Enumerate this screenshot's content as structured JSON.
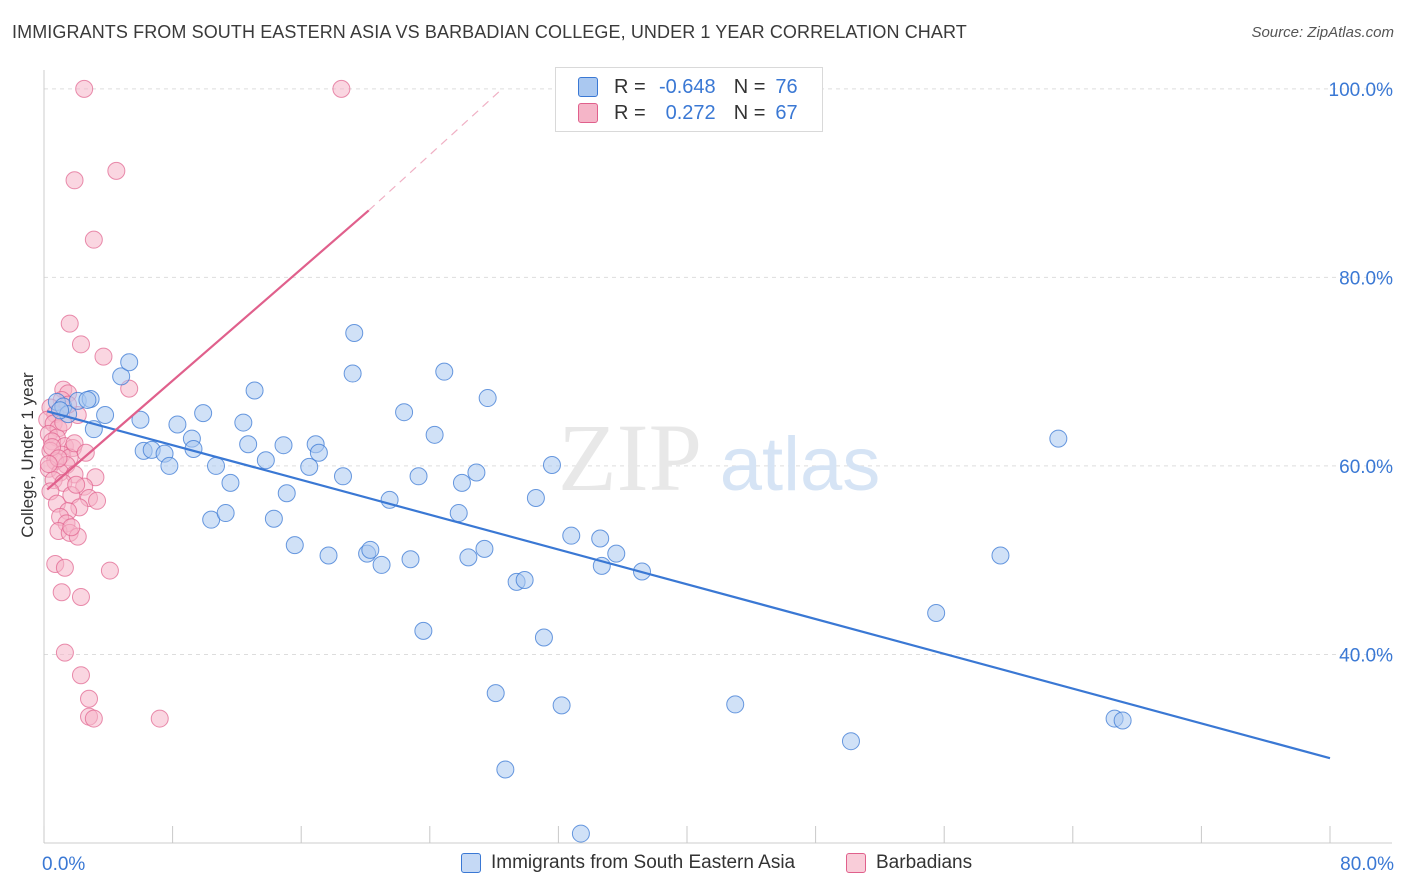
{
  "title": "IMMIGRANTS FROM SOUTH EASTERN ASIA VS BARBADIAN COLLEGE, UNDER 1 YEAR CORRELATION CHART",
  "source": "Source: ZipAtlas.com",
  "watermark": {
    "zip": "ZIP",
    "atlas": "atlas"
  },
  "colors": {
    "blue": "#3a78d4",
    "blue_fill": "#aac8f0",
    "pink": "#e0608c",
    "pink_fill": "#f5b5c8",
    "grid": "#dddddd"
  },
  "legend": {
    "rows": [
      {
        "r_label": "R =",
        "r_value": "-0.648",
        "n_label": "N =",
        "n_value": "76"
      },
      {
        "r_label": "R =",
        "r_value": "0.272",
        "n_label": "N =",
        "n_value": "67"
      }
    ]
  },
  "chart_data": {
    "type": "scatter",
    "title": "IMMIGRANTS FROM SOUTH EASTERN ASIA VS BARBADIAN COLLEGE, UNDER 1 YEAR CORRELATION CHART",
    "xlabel": "",
    "ylabel": "College, Under 1 year",
    "xlim": [
      0,
      80
    ],
    "ylim": [
      20,
      102
    ],
    "x_tick_labels": [
      "0.0%",
      "80.0%"
    ],
    "y_ticks": [
      40,
      60,
      80,
      100
    ],
    "y_tick_labels": [
      "40.0%",
      "60.0%",
      "80.0%",
      "100.0%"
    ],
    "grid": true,
    "legend_position": "top-center",
    "series": [
      {
        "name": "Immigrants from South Eastern Asia",
        "color": "#3a78d4",
        "trend": {
          "x": [
            0.2,
            80
          ],
          "y": [
            65.8,
            29.0
          ]
        },
        "points": [
          [
            0.8,
            66.8
          ],
          [
            1.2,
            66.3
          ],
          [
            1.5,
            65.5
          ],
          [
            2.1,
            66.9
          ],
          [
            2.9,
            67.1
          ],
          [
            3.1,
            63.9
          ],
          [
            3.8,
            65.4
          ],
          [
            4.8,
            69.5
          ],
          [
            5.3,
            71.0
          ],
          [
            6.0,
            64.9
          ],
          [
            6.2,
            61.6
          ],
          [
            6.7,
            61.7
          ],
          [
            7.5,
            61.3
          ],
          [
            7.8,
            60.0
          ],
          [
            8.3,
            64.4
          ],
          [
            9.2,
            62.9
          ],
          [
            9.3,
            61.8
          ],
          [
            9.9,
            65.6
          ],
          [
            10.4,
            54.3
          ],
          [
            10.7,
            60.0
          ],
          [
            11.3,
            55.0
          ],
          [
            11.6,
            58.2
          ],
          [
            12.4,
            64.6
          ],
          [
            12.7,
            62.3
          ],
          [
            13.1,
            68.0
          ],
          [
            13.8,
            60.6
          ],
          [
            14.3,
            54.4
          ],
          [
            14.9,
            62.2
          ],
          [
            15.1,
            57.1
          ],
          [
            15.6,
            51.6
          ],
          [
            16.5,
            59.9
          ],
          [
            16.9,
            62.3
          ],
          [
            17.1,
            61.4
          ],
          [
            17.7,
            50.5
          ],
          [
            18.6,
            58.9
          ],
          [
            19.2,
            69.8
          ],
          [
            19.3,
            74.1
          ],
          [
            20.1,
            50.7
          ],
          [
            20.3,
            51.1
          ],
          [
            21.0,
            49.5
          ],
          [
            21.5,
            56.4
          ],
          [
            22.4,
            65.7
          ],
          [
            22.8,
            50.1
          ],
          [
            23.3,
            58.9
          ],
          [
            23.6,
            42.5
          ],
          [
            24.3,
            63.3
          ],
          [
            24.9,
            70.0
          ],
          [
            25.8,
            55.0
          ],
          [
            26.0,
            58.2
          ],
          [
            26.4,
            50.3
          ],
          [
            26.9,
            59.3
          ],
          [
            27.4,
            51.2
          ],
          [
            27.6,
            67.2
          ],
          [
            28.1,
            35.9
          ],
          [
            28.7,
            27.8
          ],
          [
            29.4,
            47.7
          ],
          [
            29.9,
            47.9
          ],
          [
            30.6,
            56.6
          ],
          [
            31.1,
            41.8
          ],
          [
            31.6,
            60.1
          ],
          [
            32.2,
            34.6
          ],
          [
            32.8,
            52.6
          ],
          [
            33.4,
            21.0
          ],
          [
            34.6,
            52.3
          ],
          [
            34.7,
            49.4
          ],
          [
            35.6,
            50.7
          ],
          [
            37.2,
            48.8
          ],
          [
            43.0,
            34.7
          ],
          [
            50.2,
            30.8
          ],
          [
            55.5,
            44.4
          ],
          [
            59.5,
            50.5
          ],
          [
            63.1,
            62.9
          ],
          [
            66.6,
            33.2
          ],
          [
            67.1,
            33.0
          ],
          [
            1.0,
            65.9
          ],
          [
            2.7,
            67.0
          ]
        ]
      },
      {
        "name": "Barbadians",
        "color": "#e0608c",
        "trend": {
          "x": [
            0.2,
            20.2
          ],
          "y": [
            57.5,
            87.1
          ]
        },
        "trend_dashed": {
          "x": [
            20.2,
            28.5
          ],
          "y": [
            87.1,
            100
          ]
        },
        "points": [
          [
            2.5,
            100
          ],
          [
            18.5,
            100
          ],
          [
            4.5,
            91.3
          ],
          [
            1.9,
            90.3
          ],
          [
            3.1,
            84.0
          ],
          [
            1.6,
            75.1
          ],
          [
            2.3,
            72.9
          ],
          [
            3.7,
            71.6
          ],
          [
            5.3,
            68.2
          ],
          [
            1.2,
            68.1
          ],
          [
            1.5,
            67.7
          ],
          [
            1.1,
            67.0
          ],
          [
            0.4,
            66.2
          ],
          [
            0.7,
            65.5
          ],
          [
            0.2,
            64.9
          ],
          [
            2.1,
            65.4
          ],
          [
            0.6,
            64.5
          ],
          [
            0.9,
            64.0
          ],
          [
            0.3,
            63.4
          ],
          [
            0.8,
            63.0
          ],
          [
            0.5,
            62.6
          ],
          [
            1.3,
            62.1
          ],
          [
            1.8,
            61.9
          ],
          [
            0.4,
            61.6
          ],
          [
            1.1,
            61.2
          ],
          [
            1.6,
            60.9
          ],
          [
            0.7,
            60.5
          ],
          [
            1.4,
            60.1
          ],
          [
            0.3,
            59.7
          ],
          [
            1.0,
            59.3
          ],
          [
            1.9,
            59.1
          ],
          [
            3.2,
            58.8
          ],
          [
            0.6,
            58.5
          ],
          [
            1.2,
            58.2
          ],
          [
            2.5,
            57.8
          ],
          [
            0.4,
            57.3
          ],
          [
            1.7,
            56.9
          ],
          [
            2.8,
            56.6
          ],
          [
            3.3,
            56.3
          ],
          [
            0.8,
            56.0
          ],
          [
            2.2,
            55.6
          ],
          [
            1.5,
            55.2
          ],
          [
            1.0,
            54.6
          ],
          [
            1.4,
            53.9
          ],
          [
            0.9,
            53.1
          ],
          [
            1.6,
            52.9
          ],
          [
            2.1,
            52.5
          ],
          [
            0.7,
            49.6
          ],
          [
            1.3,
            49.2
          ],
          [
            4.1,
            48.9
          ],
          [
            1.1,
            46.6
          ],
          [
            2.3,
            46.1
          ],
          [
            1.3,
            40.2
          ],
          [
            2.3,
            37.8
          ],
          [
            2.8,
            35.3
          ],
          [
            2.8,
            33.4
          ],
          [
            3.1,
            33.2
          ],
          [
            7.2,
            33.2
          ],
          [
            0.5,
            62.0
          ],
          [
            1.9,
            62.4
          ],
          [
            1.2,
            64.6
          ],
          [
            0.9,
            60.8
          ],
          [
            2.0,
            58.0
          ],
          [
            1.5,
            66.5
          ],
          [
            0.3,
            60.2
          ],
          [
            2.6,
            61.4
          ],
          [
            1.7,
            53.5
          ]
        ]
      }
    ]
  }
}
